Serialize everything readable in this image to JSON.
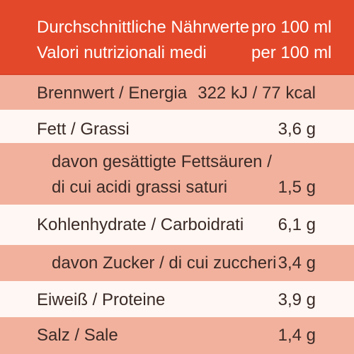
{
  "header": {
    "german_title": "Durchschnittliche Nährwerte",
    "german_unit": "pro 100 ml",
    "italian_title": "Valori nutrizionali medi",
    "italian_unit": "per 100 ml"
  },
  "rows": [
    {
      "label": "Brennwert / Energia",
      "value": "322 kJ / 77 kcal"
    },
    {
      "label": "Fett / Grassi",
      "value": "3,6 g"
    },
    {
      "label_line_1": "davon gesättigte Fettsäuren /",
      "label_line_2": "di cui acidi grassi saturi",
      "value": "1,5 g"
    },
    {
      "label": "Kohlenhydrate / Carboidrati",
      "value": "6,1 g"
    },
    {
      "label": "davon Zucker / di cui zuccheri",
      "value": "3,4 g"
    },
    {
      "label": "Eiweiß / Proteine",
      "value": "3,9 g"
    },
    {
      "label": "Salz / Sale",
      "value": "1,4 g"
    }
  ],
  "colors": {
    "header_red": "#e4482a",
    "row_orange": "#f2b19d",
    "row_white": "#fff7f3",
    "text_dark": "#3a2a26"
  }
}
